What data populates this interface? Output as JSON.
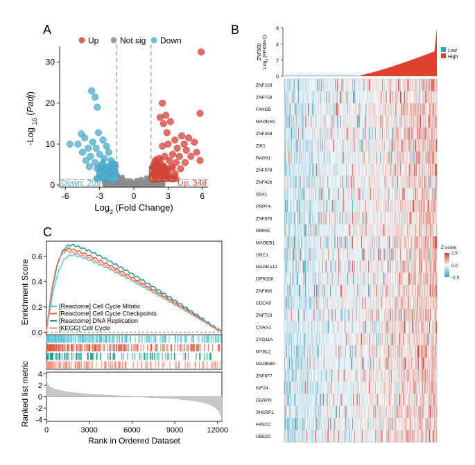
{
  "panels": {
    "a": {
      "letter": "A"
    },
    "b": {
      "letter": "B"
    },
    "c": {
      "letter": "C"
    }
  },
  "colors": {
    "up": "#d9473b",
    "down": "#4fb1d1",
    "notsig": "#8c8c8c",
    "high": "#e0402f",
    "low": "#3b9fc2",
    "gsea": [
      "#5ec3d8",
      "#e05a3e",
      "#1c9a8e",
      "#f08a6e"
    ]
  },
  "chart_data": [
    {
      "type": "scatter",
      "name": "volcano",
      "legend": [
        "Up",
        "Not sig",
        "Down"
      ],
      "xlabel": "Log2 (Fold Change)",
      "ylabel": "-Log10 (Padj)",
      "xlim": [
        -6.5,
        6.5
      ],
      "ylim": [
        -0.5,
        33
      ],
      "xticks": [
        -6,
        -3,
        0,
        3,
        6
      ],
      "yticks": [
        0,
        10,
        20,
        30
      ],
      "fc_threshold": 1.5,
      "padj_threshold": 1.3,
      "annotations": {
        "down": "Down: 209",
        "up": "Up: 348"
      },
      "up_points": [
        [
          5.9,
          32.5
        ],
        [
          5.8,
          17.5
        ],
        [
          2.5,
          20
        ],
        [
          2.8,
          17
        ],
        [
          2.3,
          16.5
        ],
        [
          2.6,
          15
        ],
        [
          3.2,
          15.5
        ],
        [
          2.9,
          12.8
        ],
        [
          4.2,
          12
        ],
        [
          3.6,
          11
        ],
        [
          4.8,
          11.5
        ],
        [
          5.3,
          10.5
        ],
        [
          3.0,
          10
        ],
        [
          4.4,
          10
        ],
        [
          3.8,
          9
        ],
        [
          2.5,
          9.5
        ],
        [
          4.6,
          8.5
        ],
        [
          5.5,
          8
        ],
        [
          3.4,
          7.5
        ],
        [
          2.7,
          7
        ],
        [
          4.0,
          7
        ],
        [
          5.0,
          7
        ],
        [
          2.2,
          6.5
        ],
        [
          3.1,
          6
        ],
        [
          3.7,
          5.5
        ],
        [
          4.5,
          5.5
        ],
        [
          5.8,
          6
        ],
        [
          2.4,
          5
        ],
        [
          2.0,
          4.5
        ],
        [
          3.3,
          4.5
        ],
        [
          1.8,
          4
        ],
        [
          2.6,
          4
        ],
        [
          4.1,
          4
        ],
        [
          1.7,
          3.5
        ],
        [
          2.2,
          3.5
        ],
        [
          3.0,
          3.2
        ],
        [
          1.9,
          3
        ],
        [
          2.5,
          2.8
        ],
        [
          3.6,
          2.8
        ],
        [
          1.7,
          2.5
        ],
        [
          2.1,
          2.3
        ],
        [
          2.8,
          2.2
        ],
        [
          1.8,
          2
        ],
        [
          2.4,
          1.8
        ],
        [
          3.2,
          1.8
        ],
        [
          1.6,
          1.7
        ],
        [
          2.0,
          1.6
        ],
        [
          2.6,
          1.5
        ],
        [
          1.7,
          1.4
        ]
      ],
      "down_points": [
        [
          -3.7,
          23
        ],
        [
          -3.4,
          21.5
        ],
        [
          -3.2,
          19
        ],
        [
          -4.6,
          12.5
        ],
        [
          -4.3,
          11.5
        ],
        [
          -3.1,
          12.8
        ],
        [
          -5.6,
          10
        ],
        [
          -4.9,
          10
        ],
        [
          -3.6,
          10.5
        ],
        [
          -2.7,
          11
        ],
        [
          -4.0,
          9
        ],
        [
          -3.3,
          9
        ],
        [
          -2.4,
          9.5
        ],
        [
          -4.5,
          8
        ],
        [
          -3.0,
          7.5
        ],
        [
          -2.2,
          8
        ],
        [
          -3.8,
          7
        ],
        [
          -2.6,
          6.5
        ],
        [
          -4.2,
          6
        ],
        [
          -2.0,
          6
        ],
        [
          -3.4,
          5.5
        ],
        [
          -2.8,
          5
        ],
        [
          -1.9,
          5
        ],
        [
          -3.9,
          4.5
        ],
        [
          -2.3,
          4.5
        ],
        [
          -1.7,
          4
        ],
        [
          -3.2,
          4
        ],
        [
          -2.5,
          3.5
        ],
        [
          -1.8,
          3.2
        ],
        [
          -2.9,
          3
        ],
        [
          -2.1,
          2.8
        ],
        [
          -1.6,
          2.6
        ],
        [
          -2.4,
          2.4
        ],
        [
          -1.9,
          2.2
        ],
        [
          -2.7,
          2.1
        ],
        [
          -1.7,
          2
        ],
        [
          -2.2,
          1.8
        ],
        [
          -1.6,
          1.6
        ],
        [
          -2.0,
          1.5
        ],
        [
          -1.8,
          1.4
        ]
      ]
    },
    {
      "type": "heatmap",
      "name": "expression-heatmap",
      "top_bar_ylabel": "ZNF560 Log2 (FPKM+1)",
      "top_bar_ylim": [
        0,
        6
      ],
      "top_bar_yticks": [
        0,
        2,
        4,
        6
      ],
      "group_legend": [
        "Low",
        "High"
      ],
      "genes": [
        "ZNF229",
        "ZNF728",
        "FANCB",
        "MAGEA6",
        "ZNF404",
        "ZIK1",
        "RAD51",
        "ZNF578",
        "ZNF426",
        "SSX1",
        "PRPF4",
        "ZNF676",
        "GMNN",
        "MAGEB1",
        "ORC1",
        "MAGEA12",
        "GPR158",
        "ZNF880",
        "CDCA5",
        "ZNF723",
        "CSAG1",
        "ZYG11A",
        "MYBL2",
        "MAGEB6",
        "ZNF677",
        "KIF24",
        "CENPN",
        "SHCBP1",
        "FANCC",
        "UBE2C"
      ],
      "colorbar_title": "Z-score",
      "colorbar_ticks": [
        2.5,
        0.0,
        -2.5
      ]
    },
    {
      "type": "line",
      "name": "gsea-enrichment",
      "ylabel": "Enrichment Score",
      "yticks": [
        0.0,
        0.2,
        0.4,
        0.6
      ],
      "ylim": [
        -0.02,
        0.72
      ],
      "xlim": [
        0,
        12300
      ],
      "series": [
        {
          "name": "[Reactome] Cell Cycle Mitotic",
          "peak_x": 1900,
          "peak_y": 0.61
        },
        {
          "name": "[Reactome] Cell Cycle Checkpoints",
          "peak_x": 1600,
          "peak_y": 0.66
        },
        {
          "name": "[Reactome] DNA Replication",
          "peak_x": 1800,
          "peak_y": 0.69
        },
        {
          "name": "[KEGG] Cell Cycle",
          "peak_x": 1500,
          "peak_y": 0.64
        }
      ]
    },
    {
      "type": "area",
      "name": "ranked-list-metric",
      "ylabel": "Ranked list metric",
      "xlabel": "Rank in Ordered Dataset",
      "yticks": [
        4,
        2,
        0,
        -2,
        -4
      ],
      "ylim": [
        -4.3,
        4.3
      ],
      "xticks": [
        0,
        3000,
        6000,
        9000,
        12000
      ],
      "xlim": [
        0,
        12300
      ],
      "x": [
        0,
        50,
        200,
        600,
        1200,
        2000,
        3000,
        4500,
        6000,
        7500,
        9000,
        10000,
        10800,
        11400,
        11800,
        12100,
        12250,
        12300
      ],
      "y": [
        3.2,
        2.4,
        1.8,
        1.3,
        0.95,
        0.7,
        0.45,
        0.25,
        0.05,
        -0.15,
        -0.35,
        -0.6,
        -0.9,
        -1.3,
        -1.8,
        -2.6,
        -3.5,
        -4.1
      ]
    }
  ]
}
